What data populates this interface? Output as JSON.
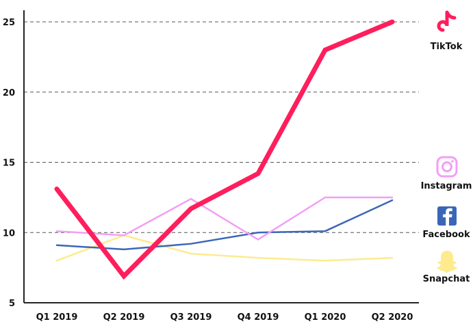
{
  "chart_data": {
    "type": "line",
    "title": "",
    "xlabel": "",
    "ylabel": "",
    "categories": [
      "Q1 2019",
      "Q2 2019",
      "Q3 2019",
      "Q4 2019",
      "Q1 2020",
      "Q2 2020"
    ],
    "ylim": [
      5,
      25
    ],
    "yticks": [
      5,
      10,
      15,
      20,
      25
    ],
    "ytick_labels": [
      "5",
      "10",
      "15",
      "20",
      "25"
    ],
    "grid": "horizontal dashed",
    "legend_placement": "right",
    "series": [
      {
        "name": "TikTok",
        "color": "#ff1e5c",
        "values": [
          13.1,
          6.9,
          11.7,
          14.2,
          23.0,
          25.0
        ]
      },
      {
        "name": "Instagram",
        "color": "#f39ef7",
        "values": [
          10.1,
          9.8,
          12.4,
          9.5,
          12.5,
          12.5
        ]
      },
      {
        "name": "Facebook",
        "color": "#3b66b8",
        "values": [
          9.1,
          8.8,
          9.2,
          10.0,
          10.1,
          12.3
        ]
      },
      {
        "name": "Snapchat",
        "color": "#fdeb8e",
        "values": [
          8.0,
          9.8,
          8.5,
          8.2,
          8.0,
          8.2
        ]
      }
    ],
    "legend_icons": [
      "tiktok-icon",
      "instagram-icon",
      "facebook-icon",
      "snapchat-icon"
    ]
  }
}
